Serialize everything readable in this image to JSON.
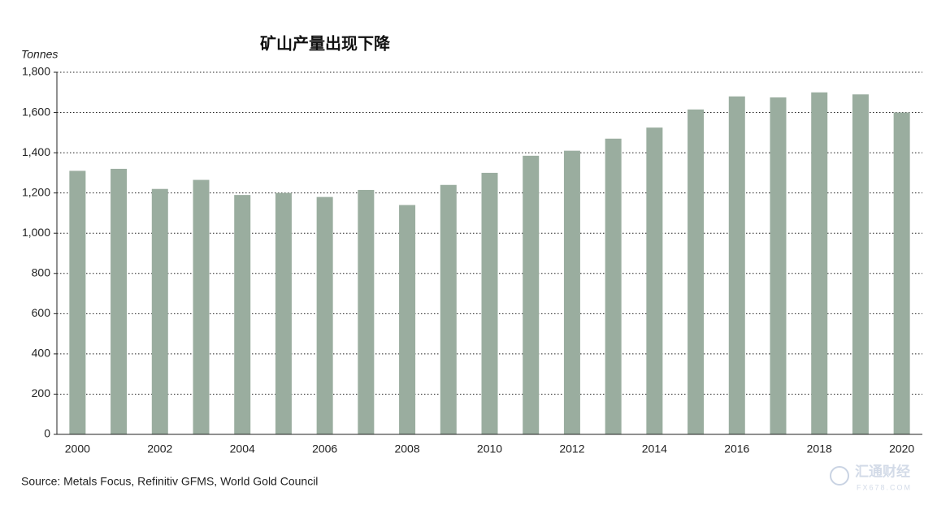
{
  "chart_data": {
    "type": "bar",
    "title": "矿山产量出现下降",
    "y_label": "Tonnes",
    "source": "Source: Metals Focus, Refinitiv GFMS, World Gold Council",
    "categories": [
      "2000",
      null,
      "2002",
      null,
      "2004",
      null,
      "2006",
      null,
      "2008",
      null,
      "2010",
      null,
      "2012",
      null,
      "2014",
      null,
      "2016",
      null,
      "2018",
      null,
      "2020"
    ],
    "values": [
      1310,
      1320,
      1220,
      1265,
      1190,
      1200,
      1180,
      1215,
      1140,
      1240,
      1300,
      1385,
      1410,
      1470,
      1525,
      1615,
      1680,
      1675,
      1700,
      1690,
      1600
    ],
    "color": "#9aad9f",
    "ylim": [
      0,
      1800
    ],
    "yticks": [
      0,
      200,
      400,
      600,
      800,
      {
        "value": 1000,
        "label": "1,000"
      },
      {
        "value": 1200,
        "label": "1,200"
      },
      {
        "value": 1400,
        "label": "1,400"
      },
      {
        "value": 1600,
        "label": "1,600"
      },
      {
        "value": 1800,
        "label": "1,800"
      }
    ],
    "grid": true
  },
  "watermark": {
    "text": "汇通财经",
    "sub": "FX678.COM"
  }
}
